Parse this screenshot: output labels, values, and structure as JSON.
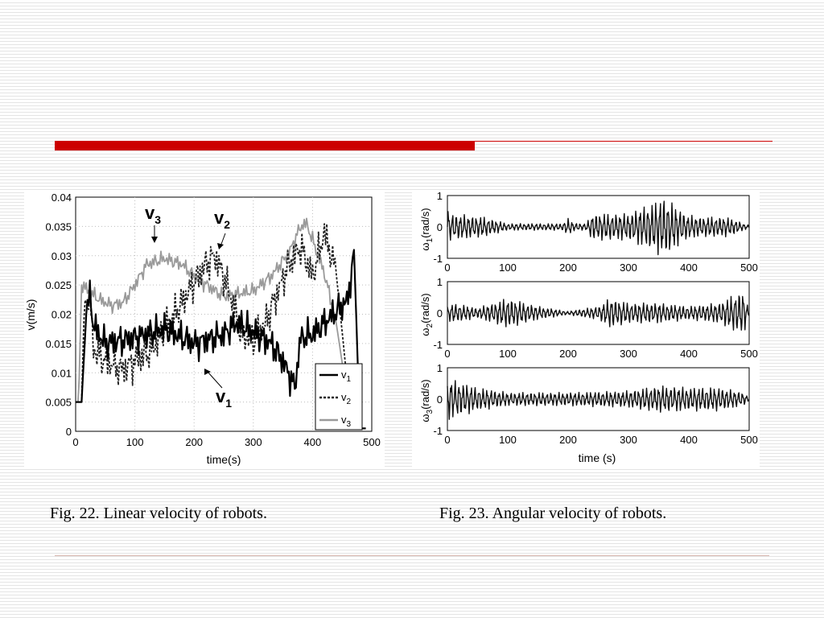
{
  "slide": {
    "accent_color": "#cc0000",
    "caption_left": "Fig. 22. Linear velocity of robots.",
    "caption_right": "Fig. 23. Angular velocity of robots."
  },
  "chart_data": [
    {
      "type": "line",
      "xlabel": "time(s)",
      "ylabel": "v(m/s)",
      "xlim": [
        0,
        500
      ],
      "ylim": [
        0,
        0.04
      ],
      "xticks": [
        "0",
        "100",
        "200",
        "300",
        "400",
        "500"
      ],
      "yticks": [
        "0",
        "0.005",
        "0.01",
        "0.015",
        "0.02",
        "0.025",
        "0.03",
        "0.035",
        "0.04"
      ],
      "grid": true,
      "legend_position": "bottom-right",
      "annotations": [
        {
          "base": "v",
          "sub": "3"
        },
        {
          "base": "v",
          "sub": "2"
        },
        {
          "base": "v",
          "sub": "1"
        }
      ],
      "series": [
        {
          "name": "v1",
          "label_base": "v",
          "label_sub": "1",
          "color": "#000000",
          "style": "solid",
          "x": [
            0,
            10,
            18,
            25,
            30,
            50,
            100,
            150,
            200,
            250,
            270,
            300,
            330,
            350,
            370,
            380,
            400,
            420,
            440,
            460,
            470,
            480,
            490
          ],
          "y": [
            0.005,
            0.005,
            0.02,
            0.0235,
            0.018,
            0.015,
            0.016,
            0.0175,
            0.015,
            0.0165,
            0.0185,
            0.017,
            0.015,
            0.012,
            0.0075,
            0.016,
            0.0165,
            0.0185,
            0.0205,
            0.0225,
            0.031,
            0.0005,
            0.0005
          ]
        },
        {
          "name": "v2",
          "label_base": "v",
          "label_sub": "2",
          "color": "#222222",
          "style": "dashed",
          "x": [
            0,
            10,
            15,
            25,
            30,
            50,
            80,
            100,
            130,
            150,
            180,
            200,
            220,
            235,
            250,
            270,
            280,
            300,
            320,
            340,
            360,
            380,
            400,
            420,
            440,
            460,
            465
          ],
          "y": [
            0.005,
            0.005,
            0.0225,
            0.0225,
            0.014,
            0.012,
            0.0105,
            0.012,
            0.014,
            0.0175,
            0.022,
            0.0255,
            0.0285,
            0.03,
            0.0265,
            0.0205,
            0.0165,
            0.0155,
            0.0185,
            0.0235,
            0.0285,
            0.0315,
            0.0265,
            0.034,
            0.027,
            0.007,
            0.007
          ]
        },
        {
          "name": "v3",
          "label_base": "v",
          "label_sub": "3",
          "color": "#9a9a9a",
          "style": "solid",
          "x": [
            0,
            5,
            10,
            40,
            60,
            80,
            100,
            120,
            150,
            180,
            200,
            250,
            300,
            330,
            360,
            380,
            390,
            420,
            440,
            460,
            465
          ],
          "y": [
            0.005,
            0.005,
            0.025,
            0.0225,
            0.0215,
            0.022,
            0.025,
            0.0285,
            0.0295,
            0.0285,
            0.0265,
            0.023,
            0.024,
            0.0265,
            0.0305,
            0.035,
            0.0355,
            0.027,
            0.0185,
            0.005,
            0.005
          ]
        }
      ]
    },
    {
      "type": "line",
      "xlabel": "time (s)",
      "xlim": [
        0,
        500
      ],
      "xticks": [
        "0",
        "100",
        "200",
        "300",
        "400",
        "500"
      ],
      "grid": false,
      "subplots": [
        {
          "ylabel": "ω1(rad/s)",
          "ylabel_sym": "ω",
          "ylabel_sub": "1",
          "ylabel_unit": "(rad/s)",
          "ylim": [
            -1,
            1
          ],
          "yticks": [
            "1",
            "0",
            "-1"
          ],
          "x": [
            0,
            5,
            60,
            100,
            190,
            200,
            210,
            230,
            240,
            300,
            360,
            380,
            400,
            420,
            440,
            460,
            480,
            490,
            500
          ],
          "amplitude": [
            0.6,
            0.4,
            0.3,
            0.1,
            0.1,
            0.25,
            0.12,
            0.1,
            0.4,
            0.4,
            0.9,
            0.6,
            0.35,
            0.3,
            0.3,
            0.3,
            0.2,
            0.1,
            0.05
          ]
        },
        {
          "ylabel": "ω2(rad/s)",
          "ylabel_sym": "ω",
          "ylabel_sub": "2",
          "ylabel_unit": "(rad/s)",
          "ylim": [
            -1,
            1
          ],
          "yticks": [
            "1",
            "0",
            "-1"
          ],
          "x": [
            0,
            10,
            50,
            100,
            150,
            200,
            250,
            270,
            300,
            350,
            400,
            450,
            470,
            490,
            500
          ],
          "amplitude": [
            0.2,
            0.3,
            0.15,
            0.45,
            0.2,
            0.05,
            0.2,
            0.45,
            0.3,
            0.3,
            0.2,
            0.3,
            0.5,
            0.7,
            0.05
          ]
        },
        {
          "ylabel": "ω3(rad/s)",
          "ylabel_sym": "ω",
          "ylabel_sub": "3",
          "ylabel_unit": "(rad/s)",
          "ylim": [
            -1,
            1
          ],
          "yticks": [
            "1",
            "0",
            "-1"
          ],
          "x": [
            0,
            5,
            50,
            100,
            200,
            300,
            350,
            400,
            450,
            490,
            500
          ],
          "amplitude": [
            0.7,
            0.6,
            0.35,
            0.2,
            0.2,
            0.25,
            0.4,
            0.35,
            0.35,
            0.2,
            0.05
          ]
        }
      ]
    }
  ]
}
